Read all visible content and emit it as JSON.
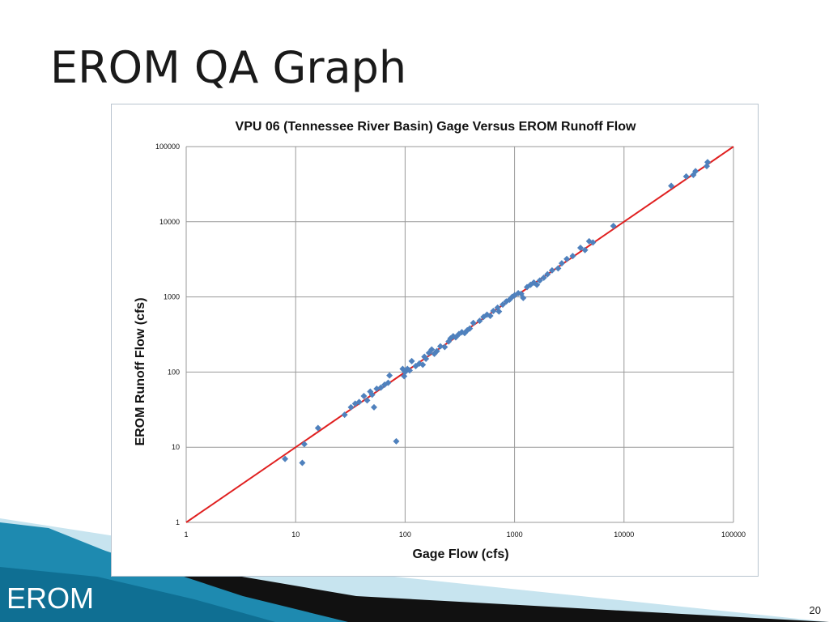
{
  "slide": {
    "title": "EROM QA Graph",
    "footer_label": "EROM",
    "page_number": "20"
  },
  "colors": {
    "points": "#4f81bd",
    "line": "#e02020",
    "grid": "#9a9a9a",
    "swoosh_dark": "#111111",
    "swoosh_blue": "#1e8ab0",
    "swoosh_light": "#b9dcea"
  },
  "chart_data": {
    "type": "scatter",
    "title": "VPU 06 (Tennessee River Basin) Gage Versus EROM Runoff Flow",
    "xlabel": "Gage Flow (cfs)",
    "ylabel": "EROM Runoff Flow (cfs)",
    "x_scale": "log",
    "y_scale": "log",
    "xlim": [
      1,
      100000
    ],
    "ylim": [
      1,
      100000
    ],
    "x_ticks": [
      "1",
      "10",
      "100",
      "1000",
      "10000",
      "100000"
    ],
    "y_ticks": [
      "1",
      "10",
      "100",
      "1000",
      "10000",
      "100000"
    ],
    "grid": true,
    "legend": "none",
    "reference_line": {
      "type": "1:1",
      "from": [
        1,
        1
      ],
      "to": [
        100000,
        100000
      ]
    },
    "series": [
      {
        "points": [
          [
            8,
            7
          ],
          [
            11.5,
            6.2
          ],
          [
            12,
            11
          ],
          [
            16,
            18
          ],
          [
            28,
            27
          ],
          [
            32,
            34
          ],
          [
            35,
            38
          ],
          [
            38,
            40
          ],
          [
            42,
            48
          ],
          [
            45,
            42
          ],
          [
            48,
            55
          ],
          [
            50,
            50
          ],
          [
            52,
            34
          ],
          [
            55,
            60
          ],
          [
            60,
            62
          ],
          [
            65,
            68
          ],
          [
            70,
            72
          ],
          [
            72,
            90
          ],
          [
            83,
            12
          ],
          [
            95,
            110
          ],
          [
            98,
            88
          ],
          [
            100,
            100
          ],
          [
            105,
            110
          ],
          [
            110,
            105
          ],
          [
            115,
            140
          ],
          [
            125,
            120
          ],
          [
            135,
            130
          ],
          [
            145,
            125
          ],
          [
            150,
            160
          ],
          [
            155,
            150
          ],
          [
            165,
            180
          ],
          [
            175,
            200
          ],
          [
            185,
            175
          ],
          [
            195,
            190
          ],
          [
            210,
            220
          ],
          [
            230,
            215
          ],
          [
            250,
            255
          ],
          [
            260,
            280
          ],
          [
            275,
            300
          ],
          [
            290,
            290
          ],
          [
            310,
            320
          ],
          [
            330,
            340
          ],
          [
            350,
            330
          ],
          [
            370,
            360
          ],
          [
            390,
            380
          ],
          [
            420,
            450
          ],
          [
            480,
            480
          ],
          [
            520,
            540
          ],
          [
            560,
            580
          ],
          [
            600,
            560
          ],
          [
            640,
            650
          ],
          [
            700,
            720
          ],
          [
            720,
            640
          ],
          [
            780,
            790
          ],
          [
            840,
            870
          ],
          [
            900,
            920
          ],
          [
            950,
            1000
          ],
          [
            1000,
            1050
          ],
          [
            1080,
            1120
          ],
          [
            1150,
            1100
          ],
          [
            1200,
            970
          ],
          [
            1300,
            1350
          ],
          [
            1400,
            1450
          ],
          [
            1500,
            1550
          ],
          [
            1600,
            1450
          ],
          [
            1700,
            1650
          ],
          [
            1850,
            1800
          ],
          [
            2000,
            2000
          ],
          [
            2200,
            2250
          ],
          [
            2500,
            2400
          ],
          [
            2700,
            2800
          ],
          [
            3000,
            3200
          ],
          [
            3400,
            3500
          ],
          [
            4000,
            4500
          ],
          [
            4400,
            4200
          ],
          [
            4800,
            5500
          ],
          [
            5200,
            5300
          ],
          [
            8000,
            8800
          ],
          [
            27000,
            30000
          ],
          [
            37000,
            40000
          ],
          [
            43000,
            42000
          ],
          [
            45000,
            47000
          ],
          [
            57000,
            55000
          ],
          [
            58000,
            62000
          ]
        ]
      }
    ]
  }
}
